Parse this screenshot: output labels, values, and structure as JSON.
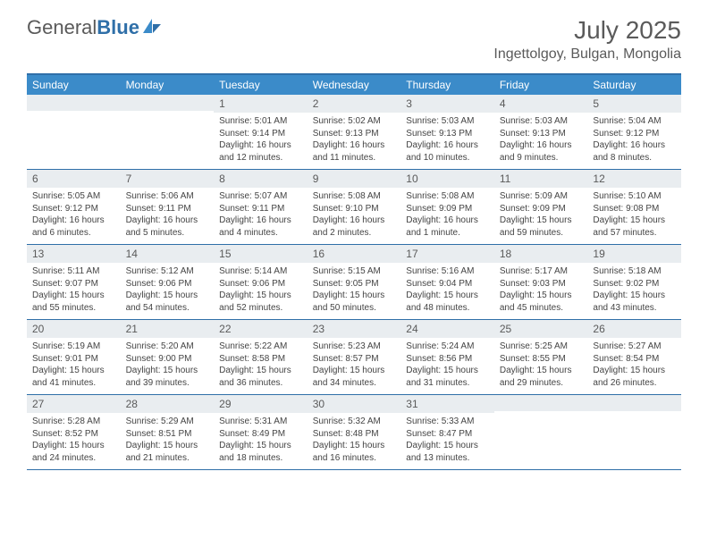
{
  "brand": {
    "part1": "General",
    "part2": "Blue"
  },
  "title": "July 2025",
  "location": "Ingettolgoy, Bulgan, Mongolia",
  "colors": {
    "header_bg": "#3b8bc9",
    "border": "#2f6fa8",
    "daynum_bg": "#e9edf0",
    "text": "#5a5a5a"
  },
  "day_labels": [
    "Sunday",
    "Monday",
    "Tuesday",
    "Wednesday",
    "Thursday",
    "Friday",
    "Saturday"
  ],
  "weeks": [
    [
      {
        "n": "",
        "lines": [
          "",
          "",
          "",
          ""
        ]
      },
      {
        "n": "",
        "lines": [
          "",
          "",
          "",
          ""
        ]
      },
      {
        "n": "1",
        "lines": [
          "Sunrise: 5:01 AM",
          "Sunset: 9:14 PM",
          "Daylight: 16 hours",
          "and 12 minutes."
        ]
      },
      {
        "n": "2",
        "lines": [
          "Sunrise: 5:02 AM",
          "Sunset: 9:13 PM",
          "Daylight: 16 hours",
          "and 11 minutes."
        ]
      },
      {
        "n": "3",
        "lines": [
          "Sunrise: 5:03 AM",
          "Sunset: 9:13 PM",
          "Daylight: 16 hours",
          "and 10 minutes."
        ]
      },
      {
        "n": "4",
        "lines": [
          "Sunrise: 5:03 AM",
          "Sunset: 9:13 PM",
          "Daylight: 16 hours",
          "and 9 minutes."
        ]
      },
      {
        "n": "5",
        "lines": [
          "Sunrise: 5:04 AM",
          "Sunset: 9:12 PM",
          "Daylight: 16 hours",
          "and 8 minutes."
        ]
      }
    ],
    [
      {
        "n": "6",
        "lines": [
          "Sunrise: 5:05 AM",
          "Sunset: 9:12 PM",
          "Daylight: 16 hours",
          "and 6 minutes."
        ]
      },
      {
        "n": "7",
        "lines": [
          "Sunrise: 5:06 AM",
          "Sunset: 9:11 PM",
          "Daylight: 16 hours",
          "and 5 minutes."
        ]
      },
      {
        "n": "8",
        "lines": [
          "Sunrise: 5:07 AM",
          "Sunset: 9:11 PM",
          "Daylight: 16 hours",
          "and 4 minutes."
        ]
      },
      {
        "n": "9",
        "lines": [
          "Sunrise: 5:08 AM",
          "Sunset: 9:10 PM",
          "Daylight: 16 hours",
          "and 2 minutes."
        ]
      },
      {
        "n": "10",
        "lines": [
          "Sunrise: 5:08 AM",
          "Sunset: 9:09 PM",
          "Daylight: 16 hours",
          "and 1 minute."
        ]
      },
      {
        "n": "11",
        "lines": [
          "Sunrise: 5:09 AM",
          "Sunset: 9:09 PM",
          "Daylight: 15 hours",
          "and 59 minutes."
        ]
      },
      {
        "n": "12",
        "lines": [
          "Sunrise: 5:10 AM",
          "Sunset: 9:08 PM",
          "Daylight: 15 hours",
          "and 57 minutes."
        ]
      }
    ],
    [
      {
        "n": "13",
        "lines": [
          "Sunrise: 5:11 AM",
          "Sunset: 9:07 PM",
          "Daylight: 15 hours",
          "and 55 minutes."
        ]
      },
      {
        "n": "14",
        "lines": [
          "Sunrise: 5:12 AM",
          "Sunset: 9:06 PM",
          "Daylight: 15 hours",
          "and 54 minutes."
        ]
      },
      {
        "n": "15",
        "lines": [
          "Sunrise: 5:14 AM",
          "Sunset: 9:06 PM",
          "Daylight: 15 hours",
          "and 52 minutes."
        ]
      },
      {
        "n": "16",
        "lines": [
          "Sunrise: 5:15 AM",
          "Sunset: 9:05 PM",
          "Daylight: 15 hours",
          "and 50 minutes."
        ]
      },
      {
        "n": "17",
        "lines": [
          "Sunrise: 5:16 AM",
          "Sunset: 9:04 PM",
          "Daylight: 15 hours",
          "and 48 minutes."
        ]
      },
      {
        "n": "18",
        "lines": [
          "Sunrise: 5:17 AM",
          "Sunset: 9:03 PM",
          "Daylight: 15 hours",
          "and 45 minutes."
        ]
      },
      {
        "n": "19",
        "lines": [
          "Sunrise: 5:18 AM",
          "Sunset: 9:02 PM",
          "Daylight: 15 hours",
          "and 43 minutes."
        ]
      }
    ],
    [
      {
        "n": "20",
        "lines": [
          "Sunrise: 5:19 AM",
          "Sunset: 9:01 PM",
          "Daylight: 15 hours",
          "and 41 minutes."
        ]
      },
      {
        "n": "21",
        "lines": [
          "Sunrise: 5:20 AM",
          "Sunset: 9:00 PM",
          "Daylight: 15 hours",
          "and 39 minutes."
        ]
      },
      {
        "n": "22",
        "lines": [
          "Sunrise: 5:22 AM",
          "Sunset: 8:58 PM",
          "Daylight: 15 hours",
          "and 36 minutes."
        ]
      },
      {
        "n": "23",
        "lines": [
          "Sunrise: 5:23 AM",
          "Sunset: 8:57 PM",
          "Daylight: 15 hours",
          "and 34 minutes."
        ]
      },
      {
        "n": "24",
        "lines": [
          "Sunrise: 5:24 AM",
          "Sunset: 8:56 PM",
          "Daylight: 15 hours",
          "and 31 minutes."
        ]
      },
      {
        "n": "25",
        "lines": [
          "Sunrise: 5:25 AM",
          "Sunset: 8:55 PM",
          "Daylight: 15 hours",
          "and 29 minutes."
        ]
      },
      {
        "n": "26",
        "lines": [
          "Sunrise: 5:27 AM",
          "Sunset: 8:54 PM",
          "Daylight: 15 hours",
          "and 26 minutes."
        ]
      }
    ],
    [
      {
        "n": "27",
        "lines": [
          "Sunrise: 5:28 AM",
          "Sunset: 8:52 PM",
          "Daylight: 15 hours",
          "and 24 minutes."
        ]
      },
      {
        "n": "28",
        "lines": [
          "Sunrise: 5:29 AM",
          "Sunset: 8:51 PM",
          "Daylight: 15 hours",
          "and 21 minutes."
        ]
      },
      {
        "n": "29",
        "lines": [
          "Sunrise: 5:31 AM",
          "Sunset: 8:49 PM",
          "Daylight: 15 hours",
          "and 18 minutes."
        ]
      },
      {
        "n": "30",
        "lines": [
          "Sunrise: 5:32 AM",
          "Sunset: 8:48 PM",
          "Daylight: 15 hours",
          "and 16 minutes."
        ]
      },
      {
        "n": "31",
        "lines": [
          "Sunrise: 5:33 AM",
          "Sunset: 8:47 PM",
          "Daylight: 15 hours",
          "and 13 minutes."
        ]
      },
      {
        "n": "",
        "lines": [
          "",
          "",
          "",
          ""
        ]
      },
      {
        "n": "",
        "lines": [
          "",
          "",
          "",
          ""
        ]
      }
    ]
  ]
}
